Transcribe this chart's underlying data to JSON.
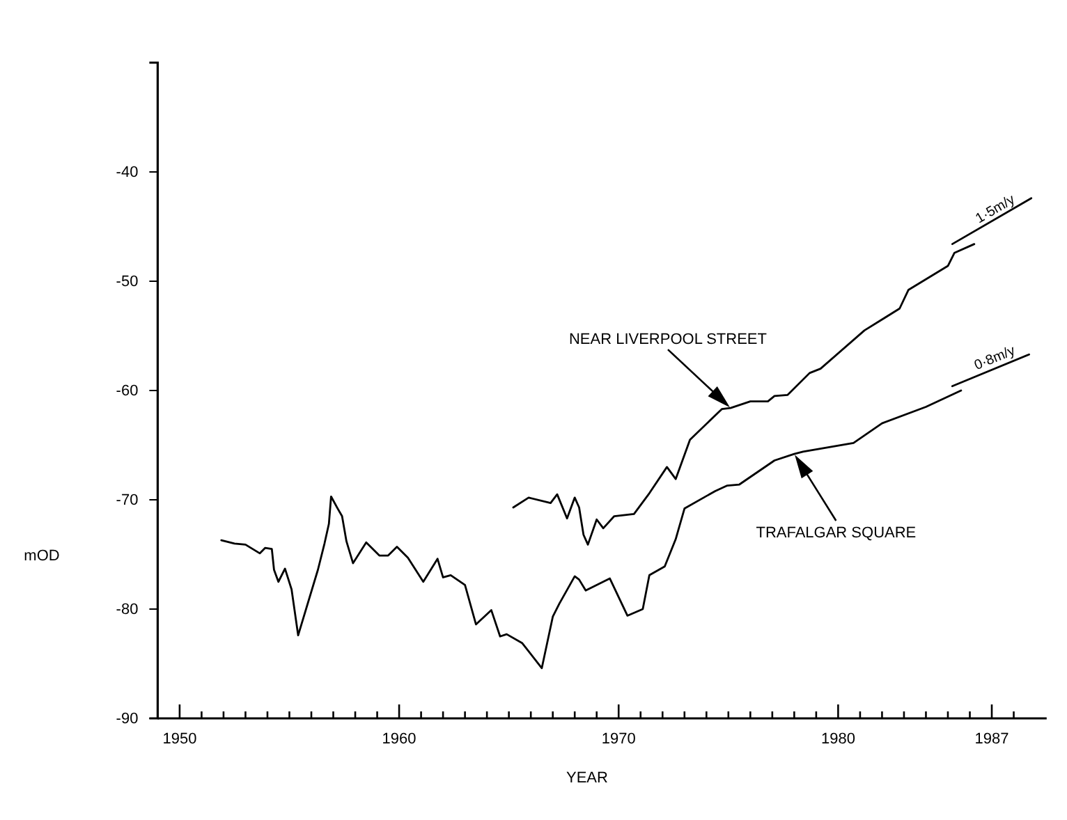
{
  "chart_data": {
    "type": "line",
    "xlabel": "YEAR",
    "ylabel": "mOD",
    "xlim": [
      1949,
      1989.5
    ],
    "ylim": [
      -90,
      -30
    ],
    "xticks": [
      {
        "value": 1950,
        "label": "1950"
      },
      {
        "value": 1951,
        "label": null
      },
      {
        "value": 1952,
        "label": null
      },
      {
        "value": 1953,
        "label": null
      },
      {
        "value": 1954,
        "label": null
      },
      {
        "value": 1955,
        "label": null
      },
      {
        "value": 1956,
        "label": null
      },
      {
        "value": 1957,
        "label": null
      },
      {
        "value": 1958,
        "label": null
      },
      {
        "value": 1959,
        "label": null
      },
      {
        "value": 1960,
        "label": "1960"
      },
      {
        "value": 1961,
        "label": null
      },
      {
        "value": 1962,
        "label": null
      },
      {
        "value": 1963,
        "label": null
      },
      {
        "value": 1964,
        "label": null
      },
      {
        "value": 1965,
        "label": null
      },
      {
        "value": 1966,
        "label": null
      },
      {
        "value": 1967,
        "label": null
      },
      {
        "value": 1968,
        "label": null
      },
      {
        "value": 1969,
        "label": null
      },
      {
        "value": 1970,
        "label": "1970"
      },
      {
        "value": 1971,
        "label": null
      },
      {
        "value": 1972,
        "label": null
      },
      {
        "value": 1973,
        "label": null
      },
      {
        "value": 1974,
        "label": null
      },
      {
        "value": 1975,
        "label": null
      },
      {
        "value": 1976,
        "label": null
      },
      {
        "value": 1977,
        "label": null
      },
      {
        "value": 1978,
        "label": null
      },
      {
        "value": 1979,
        "label": null
      },
      {
        "value": 1980,
        "label": "1980"
      },
      {
        "value": 1981,
        "label": null
      },
      {
        "value": 1982,
        "label": null
      },
      {
        "value": 1983,
        "label": null
      },
      {
        "value": 1984,
        "label": null
      },
      {
        "value": 1985,
        "label": null
      },
      {
        "value": 1986,
        "label": null
      },
      {
        "value": 1987,
        "label": "1987"
      },
      {
        "value": 1988,
        "label": null
      }
    ],
    "yticks": [
      {
        "value": -90,
        "label": "-90"
      },
      {
        "value": -80,
        "label": "-80"
      },
      {
        "value": -70,
        "label": "-70"
      },
      {
        "value": -60,
        "label": "-60"
      },
      {
        "value": -50,
        "label": "-50"
      },
      {
        "value": -40,
        "label": "-40"
      }
    ],
    "grid": false,
    "legend": false,
    "marker": "none",
    "line_style": "solid",
    "series": [
      {
        "color": "#000000",
        "x": [
          1951.9,
          1952.5,
          1953.0,
          1953.65,
          1953.9,
          1954.2,
          1954.3,
          1954.5,
          1954.8,
          1955.1,
          1955.4,
          1956.3,
          1956.6,
          1956.8,
          1956.9,
          1957.2,
          1957.4,
          1957.6,
          1957.9,
          1958.5,
          1959.1,
          1959.5,
          1959.9,
          1960.4,
          1961.1,
          1961.75,
          1962.0,
          1962.35,
          1963.0,
          1963.5,
          1964.2,
          1964.6,
          1964.9,
          1965.6,
          1966.5,
          1967.0,
          1967.3,
          1968.0,
          1968.2,
          1968.5,
          1969.6,
          1970.4,
          1971.1,
          1971.4,
          1972.1,
          1972.6,
          1973.0,
          1974.4,
          1974.95,
          1975.5,
          1977.1,
          1978.0,
          1978.4,
          1980.7,
          1982.0,
          1984.0,
          1985.6
        ],
        "values": [
          -73.7,
          -74.0,
          -74.1,
          -74.9,
          -74.4,
          -74.5,
          -76.4,
          -77.5,
          -76.3,
          -78.2,
          -82.4,
          -76.4,
          -74.0,
          -72.2,
          -69.7,
          -70.8,
          -71.5,
          -73.8,
          -75.8,
          -73.9,
          -75.1,
          -75.1,
          -74.3,
          -75.3,
          -77.5,
          -75.4,
          -77.1,
          -76.9,
          -77.8,
          -81.4,
          -80.1,
          -82.5,
          -82.3,
          -83.1,
          -85.4,
          -80.7,
          -79.5,
          -77.0,
          -77.3,
          -78.3,
          -77.2,
          -80.6,
          -80.0,
          -76.9,
          -76.1,
          -73.6,
          -70.8,
          -69.2,
          -68.7,
          -68.6,
          -66.4,
          -65.8,
          -65.6,
          -64.8,
          -63.0,
          -61.5,
          -60.0
        ]
      },
      {
        "color": "#000000",
        "x": [
          1965.2,
          1965.9,
          1966.9,
          1967.2,
          1967.65,
          1968.0,
          1968.2,
          1968.4,
          1968.6,
          1969.0,
          1969.3,
          1969.8,
          1970.7,
          1971.4,
          1972.2,
          1972.6,
          1973.25,
          1974.7,
          1975.1,
          1976.0,
          1976.8,
          1977.1,
          1977.7,
          1978.7,
          1979.2,
          1981.2,
          1982.8,
          1983.2,
          1985.0,
          1985.3,
          1986.2
        ],
        "values": [
          -70.7,
          -69.8,
          -70.3,
          -69.5,
          -71.7,
          -69.8,
          -70.7,
          -73.2,
          -74.1,
          -71.8,
          -72.6,
          -71.5,
          -71.3,
          -69.4,
          -67.0,
          -68.1,
          -64.5,
          -61.7,
          -61.6,
          -61.0,
          -61.0,
          -60.5,
          -60.4,
          -58.4,
          -58.0,
          -54.5,
          -52.5,
          -50.8,
          -48.6,
          -47.4,
          -46.6
        ]
      },
      {
        "name": "1·5m/y",
        "color": "#000000",
        "x": [
          1985.2,
          1988.8
        ],
        "values": [
          -46.6,
          -42.4
        ]
      },
      {
        "name": "0·8m/y",
        "color": "#000000",
        "x": [
          1985.2,
          1988.7
        ],
        "values": [
          -59.6,
          -56.7
        ]
      }
    ],
    "annotations": [
      "NEAR LIVERPOOL STREET",
      "TRAFALGAR SQUARE"
    ]
  }
}
